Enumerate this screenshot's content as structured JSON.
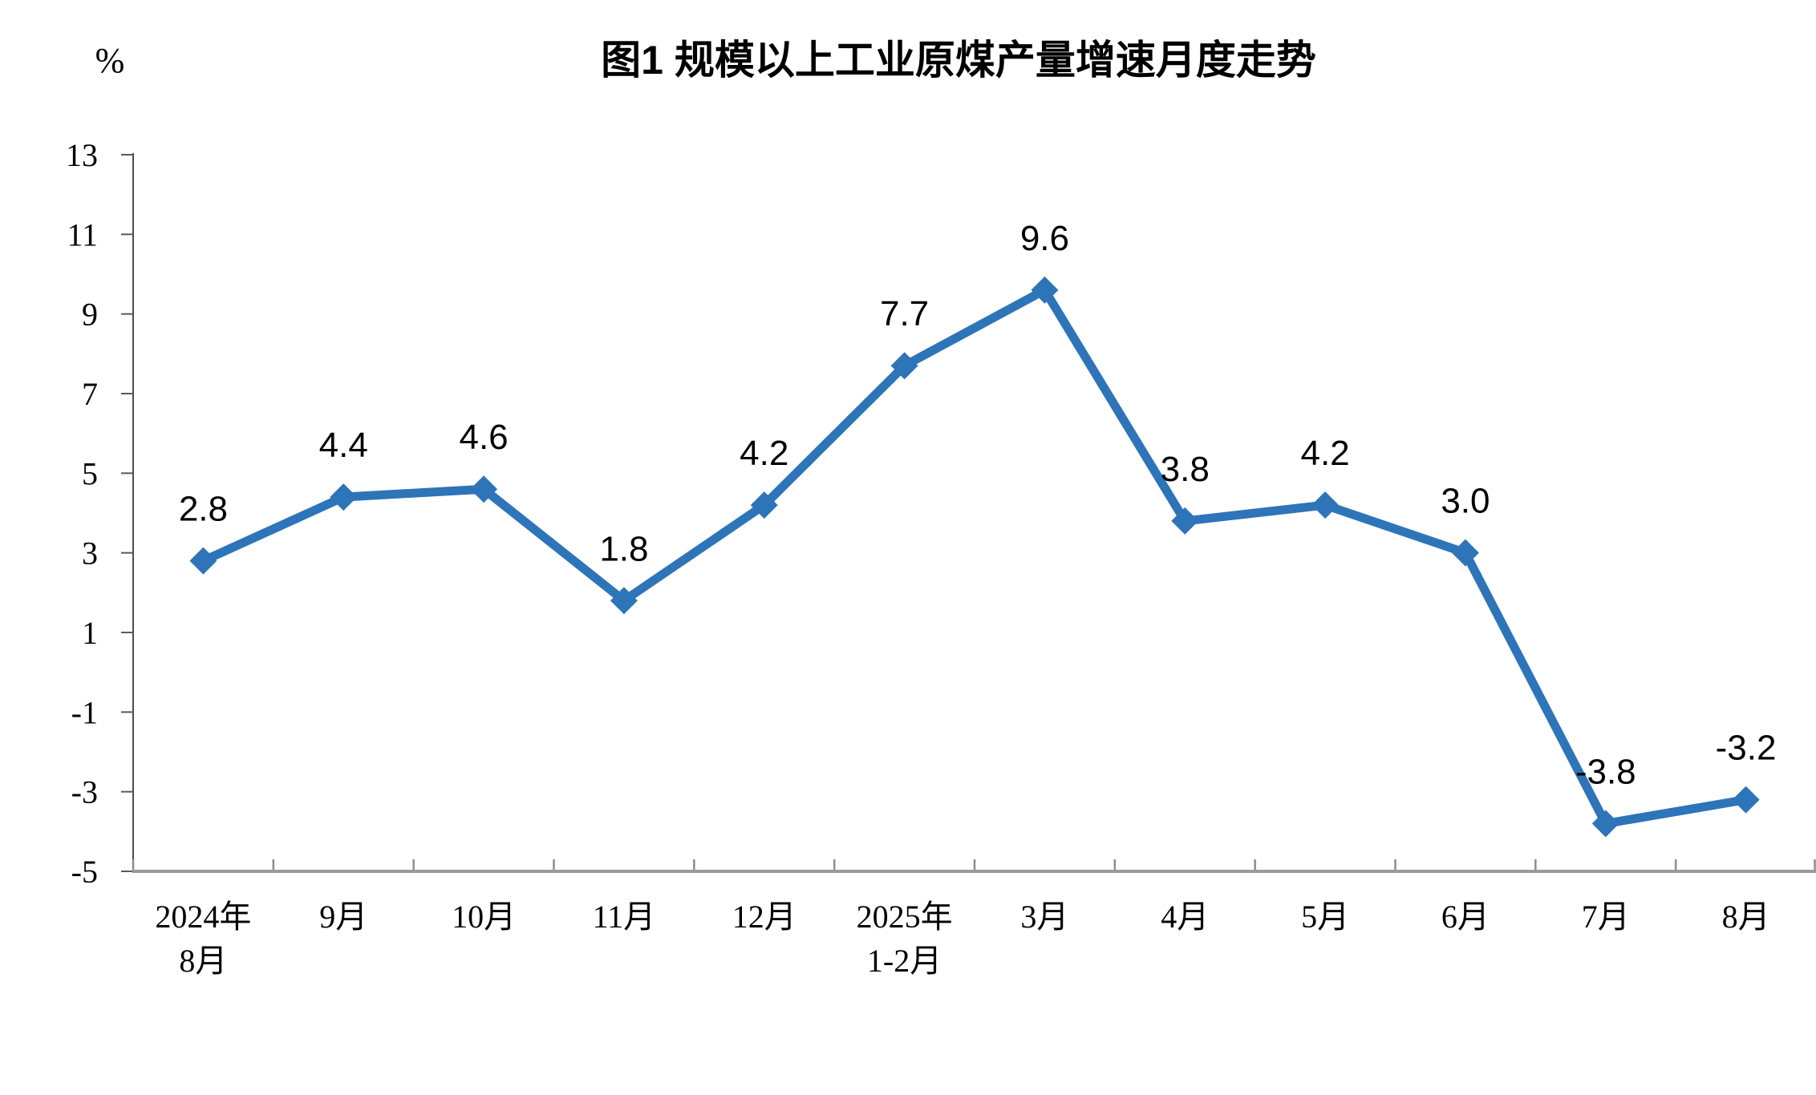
{
  "page": {
    "background": "#ffffff"
  },
  "chart_data": {
    "type": "line",
    "title": "图1  规模以上工业原煤产量增速月度走势",
    "y_axis_unit": "%",
    "xlabel": "",
    "ylabel": "%",
    "categories": [
      [
        "2024年",
        "8月"
      ],
      [
        "9月"
      ],
      [
        "10月"
      ],
      [
        "11月"
      ],
      [
        "12月"
      ],
      [
        "2025年",
        "1-2月"
      ],
      [
        "3月"
      ],
      [
        "4月"
      ],
      [
        "5月"
      ],
      [
        "6月"
      ],
      [
        "7月"
      ],
      [
        "8月"
      ]
    ],
    "values": [
      2.8,
      4.4,
      4.6,
      1.8,
      4.2,
      7.7,
      9.6,
      3.8,
      4.2,
      3.0,
      -3.8,
      -3.2
    ],
    "point_labels": [
      "2.8",
      "4.4",
      "4.6",
      "1.8",
      "4.2",
      "7.7",
      "9.6",
      "3.8",
      "4.2",
      "3.0",
      "-3.8",
      "-3.2"
    ],
    "ylim": [
      -5,
      13
    ],
    "y_ticks": [
      13,
      11,
      9,
      7,
      5,
      3,
      1,
      -1,
      -3,
      -5
    ],
    "grid": false,
    "legend": "none",
    "marker": "diamond",
    "colors": {
      "series_line": "#2E74B9",
      "marker_fill": "#2E74B9",
      "title_text": "#000000",
      "tick_label_text": "#000000",
      "data_label_text": "#000000",
      "x_axis_line": "#9A9A9A",
      "y_axis_line": "#4D4D4D",
      "x_tick_mark": "#8C8C8C",
      "y_tick_mark": "#595959"
    }
  }
}
